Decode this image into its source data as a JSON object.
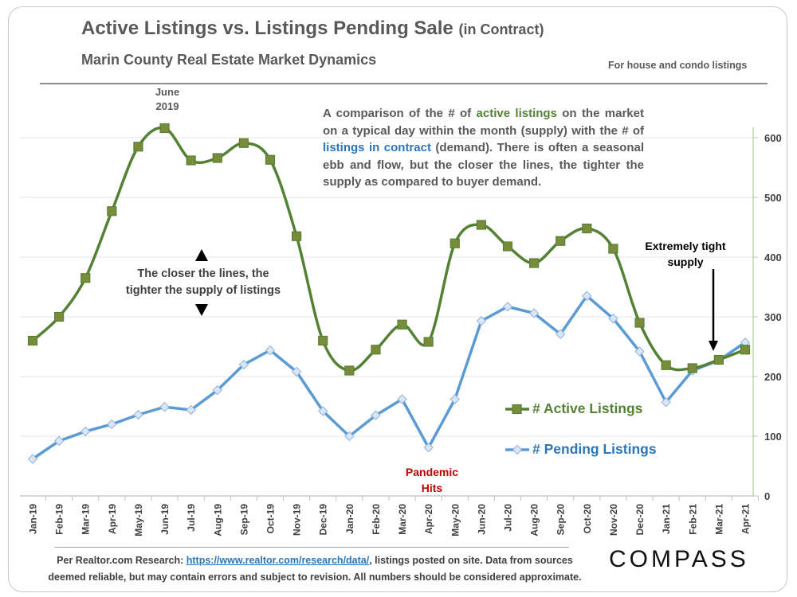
{
  "header": {
    "title": "Active Listings vs. Listings Pending Sale",
    "title_suffix": "(in Contract)",
    "subtitle": "Marin County Real Estate Market Dynamics",
    "scope_note": "For house and condo listings"
  },
  "annotations": {
    "june_line1": "June",
    "june_line2": "2019",
    "desc_part1": "A comparison of the # of ",
    "desc_active": "active listings",
    "desc_part2": " on the market on a typical day within the month (supply) with the # of ",
    "desc_pending": "listings in contract",
    "desc_part3": " (demand). There is often a seasonal ebb and flow, but the closer the lines, the tighter the supply as compared to buyer demand.",
    "closer_line1": "The closer the lines, the",
    "closer_line2": "tighter the supply of listings",
    "tight_line1": "Extremely tight",
    "tight_line2": "supply",
    "pandemic_line1": "Pandemic",
    "pandemic_line2": "Hits"
  },
  "footer": {
    "prefix": "Per Realtor.com Research: ",
    "link_text": "https://www.realtor.com/research/data/",
    "suffix": ", listings posted on site. Data from sources deemed reliable, but may contain errors and subject to revision. All numbers should be considered approximate."
  },
  "brand": {
    "logo_text": "COMPASS"
  },
  "colors": {
    "active": "#548235",
    "active_marker": "#7a8c3a",
    "pending": "#5b9bd5",
    "pending_marker": "#dce6f2",
    "grid": "#e6e6e6",
    "axis": "#bfbfbf"
  },
  "chart_data": {
    "type": "line",
    "title": "Active Listings vs. Listings Pending Sale (in Contract)",
    "xlabel": "",
    "ylabel": "",
    "ylim": [
      0,
      620
    ],
    "yticks": [
      0,
      100,
      200,
      300,
      400,
      500,
      600
    ],
    "categories": [
      "Jan-19",
      "Feb-19",
      "Mar-19",
      "Apr-19",
      "May-19",
      "Jun-19",
      "Jul-19",
      "Aug-19",
      "Sep-19",
      "Oct-19",
      "Nov-19",
      "Dec-19",
      "Jan-20",
      "Feb-20",
      "Mar-20",
      "Apr-20",
      "May-20",
      "Jun-20",
      "Jul-20",
      "Aug-20",
      "Sep-20",
      "Oct-20",
      "Nov-20",
      "Dec-20",
      "Jan-21",
      "Feb-21",
      "Mar-21",
      "Apr-21"
    ],
    "series": [
      {
        "name": "# Active Listings",
        "values": [
          260,
          300,
          365,
          477,
          585,
          616,
          562,
          566,
          591,
          563,
          435,
          260,
          210,
          245,
          287,
          258,
          423,
          454,
          418,
          390,
          427,
          448,
          414,
          290,
          219,
          214,
          228,
          245
        ]
      },
      {
        "name": "# Pending Listings",
        "values": [
          62,
          92,
          108,
          120,
          136,
          149,
          144,
          177,
          220,
          244,
          208,
          142,
          100,
          135,
          162,
          81,
          162,
          293,
          317,
          306,
          271,
          335,
          297,
          242,
          157,
          210,
          227,
          257
        ]
      }
    ],
    "legend_position": "right"
  }
}
